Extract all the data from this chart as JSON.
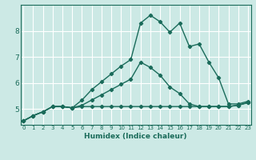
{
  "xlabel": "Humidex (Indice chaleur)",
  "background_color": "#cce9e5",
  "grid_color": "#ffffff",
  "line_color": "#1a6b5a",
  "x_ticks": [
    0,
    1,
    2,
    3,
    4,
    5,
    6,
    7,
    8,
    9,
    10,
    11,
    12,
    13,
    14,
    15,
    16,
    17,
    18,
    19,
    20,
    21,
    22,
    23
  ],
  "y_ticks": [
    5,
    6,
    7,
    8
  ],
  "xlim": [
    -0.3,
    23.3
  ],
  "ylim": [
    4.4,
    9.0
  ],
  "series": [
    [
      4.55,
      4.75,
      4.9,
      5.1,
      5.1,
      5.05,
      5.35,
      5.75,
      6.05,
      6.35,
      6.65,
      6.9,
      8.3,
      8.6,
      8.35,
      7.95,
      8.3,
      7.4,
      7.5,
      6.8,
      6.2,
      5.2,
      5.2,
      5.3
    ],
    [
      4.55,
      4.75,
      4.9,
      5.1,
      5.1,
      5.05,
      5.15,
      5.35,
      5.55,
      5.75,
      5.95,
      6.15,
      6.8,
      6.6,
      6.3,
      5.85,
      5.6,
      5.2,
      5.1,
      5.1,
      5.1,
      5.1,
      5.15,
      5.25
    ],
    [
      4.55,
      4.75,
      4.9,
      5.1,
      5.1,
      5.05,
      5.1,
      5.1,
      5.1,
      5.1,
      5.1,
      5.1,
      5.1,
      5.1,
      5.1,
      5.1,
      5.1,
      5.1,
      5.1,
      5.1,
      5.1,
      5.1,
      5.15,
      5.25
    ]
  ],
  "xlabel_fontsize": 6.5,
  "xtick_fontsize": 5.0,
  "ytick_fontsize": 6.5,
  "linewidth": 1.0,
  "markersize": 2.2
}
